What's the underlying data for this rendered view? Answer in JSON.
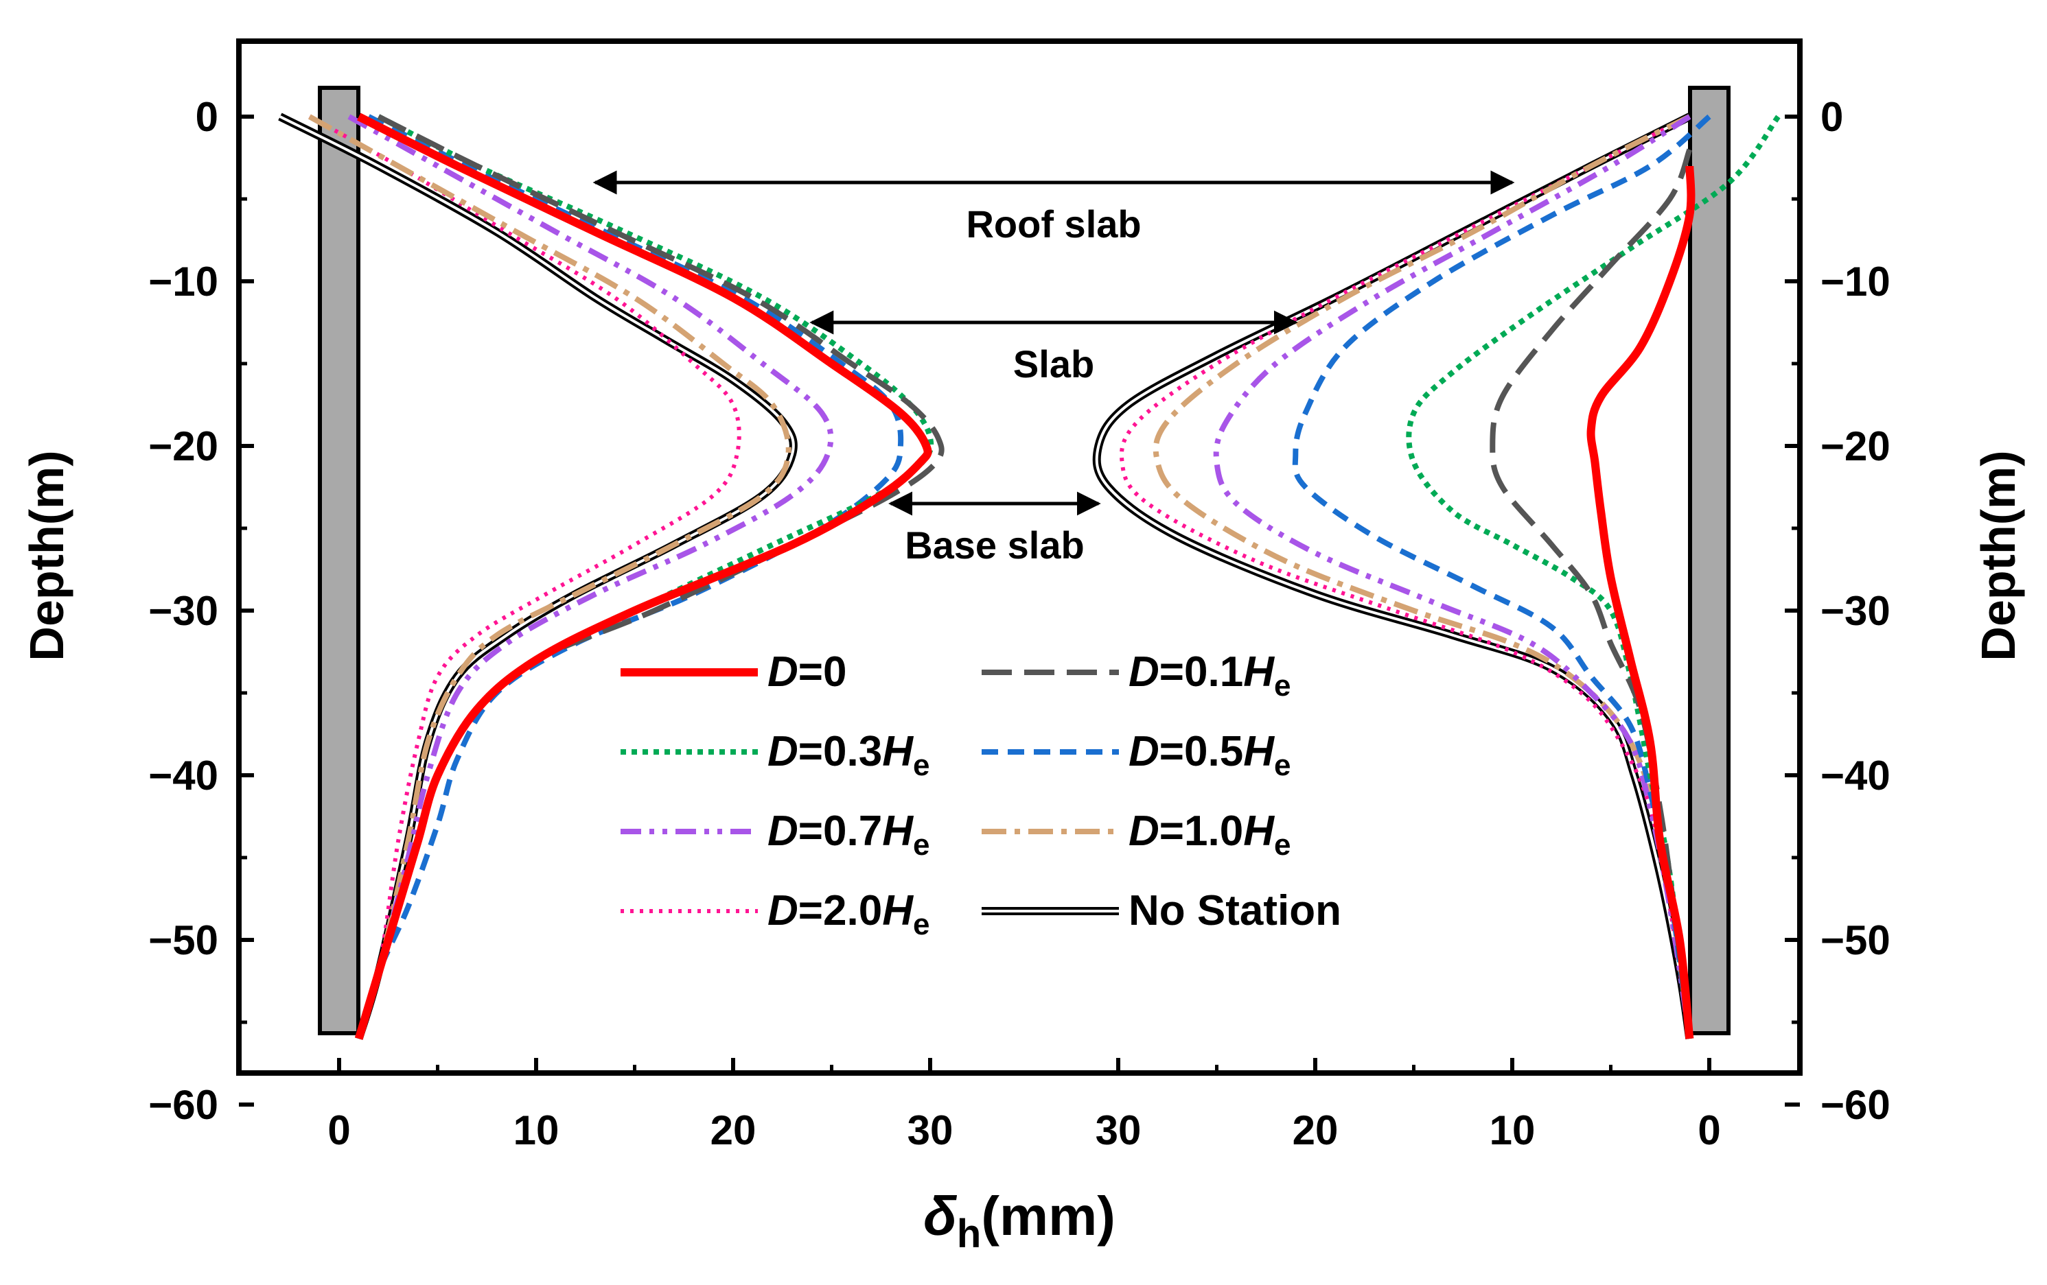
{
  "chart_data": {
    "type": "line",
    "xlabel": {
      "symbol": "δ",
      "subscript": "h",
      "unit": "(mm)"
    },
    "ylabel_left": "Depth(m)",
    "ylabel_right": "Depth(m)",
    "ylim": [
      -60,
      5
    ],
    "y_ticks": [
      0,
      -10,
      -20,
      -30,
      -40,
      -50,
      -60
    ],
    "y_tick_labels": [
      "0",
      "−10",
      "−20",
      "−30",
      "−40",
      "−50",
      "−60"
    ],
    "x_ticks_left": [
      0,
      10,
      20,
      30
    ],
    "x_ticks_right": [
      30,
      20,
      10,
      0
    ],
    "x_tick_labels_left": [
      "0",
      "10",
      "20",
      "30"
    ],
    "x_tick_labels_right": [
      "30",
      "20",
      "10",
      "0"
    ],
    "annotations": [
      {
        "label": "Roof slab",
        "depth": -4,
        "from_mm_left": 13,
        "to_mm_right": 10
      },
      {
        "label": "Slab",
        "depth": -12.5,
        "from_mm_left": 24,
        "to_mm_right": 21
      },
      {
        "label": "Base slab",
        "depth": -23.5,
        "from_mm_left": 28,
        "to_mm_right": 31
      }
    ],
    "legend": [
      {
        "prefix": "D",
        "text": "=0",
        "sub": "",
        "key": "D0"
      },
      {
        "prefix": "D",
        "text": "=0.1H",
        "sub": "e",
        "key": "D01"
      },
      {
        "prefix": "D",
        "text": "=0.3H",
        "sub": "e",
        "key": "D03"
      },
      {
        "prefix": "D",
        "text": "=0.5H",
        "sub": "e",
        "key": "D05"
      },
      {
        "prefix": "D",
        "text": "=0.7H",
        "sub": "e",
        "key": "D07"
      },
      {
        "prefix": "D",
        "text": "=1.0H",
        "sub": "e",
        "key": "D10"
      },
      {
        "prefix": "D",
        "text": "=2.0H",
        "sub": "e",
        "key": "D20"
      },
      {
        "prefix": "",
        "text": "No Station",
        "sub": "",
        "key": "NS"
      }
    ],
    "series": [
      {
        "key": "D0",
        "name": "D=0",
        "color": "#ff0000",
        "style": "solid",
        "left": [
          [
            1,
            0
          ],
          [
            6,
            -3
          ],
          [
            13,
            -7
          ],
          [
            20,
            -11
          ],
          [
            25,
            -15
          ],
          [
            28.5,
            -18
          ],
          [
            29.8,
            -20
          ],
          [
            29.5,
            -21
          ],
          [
            27.5,
            -23
          ],
          [
            23,
            -26
          ],
          [
            15,
            -30
          ],
          [
            10,
            -33
          ],
          [
            7,
            -36
          ],
          [
            5,
            -40
          ],
          [
            4,
            -44
          ],
          [
            3,
            -48
          ],
          [
            2,
            -52
          ],
          [
            1,
            -56
          ]
        ],
        "right": [
          [
            1,
            -3
          ],
          [
            1,
            -6
          ],
          [
            2,
            -10
          ],
          [
            3.5,
            -14
          ],
          [
            5.5,
            -17
          ],
          [
            6,
            -19
          ],
          [
            5.8,
            -21
          ],
          [
            5.5,
            -24
          ],
          [
            5,
            -28
          ],
          [
            4,
            -33
          ],
          [
            3,
            -38
          ],
          [
            2.5,
            -44
          ],
          [
            1.5,
            -50
          ],
          [
            1,
            -56
          ]
        ]
      },
      {
        "key": "D01",
        "name": "D=0.1He",
        "color": "#555555",
        "style": "longdash",
        "left": [
          [
            2,
            0
          ],
          [
            7,
            -3
          ],
          [
            14,
            -7
          ],
          [
            21,
            -11
          ],
          [
            26,
            -15
          ],
          [
            29,
            -17.5
          ],
          [
            30.4,
            -19.5
          ],
          [
            30.3,
            -21
          ],
          [
            28,
            -23
          ],
          [
            23,
            -26
          ],
          [
            16,
            -30
          ],
          [
            10,
            -33
          ],
          [
            7,
            -36
          ],
          [
            5,
            -40
          ],
          [
            4,
            -44
          ],
          [
            3,
            -48
          ],
          [
            2,
            -52
          ],
          [
            1,
            -56
          ]
        ],
        "right": [
          [
            1,
            -2
          ],
          [
            2,
            -5
          ],
          [
            5,
            -9
          ],
          [
            8,
            -13
          ],
          [
            10.5,
            -17
          ],
          [
            11,
            -20
          ],
          [
            10.5,
            -22.5
          ],
          [
            8,
            -26
          ],
          [
            6,
            -29
          ],
          [
            5,
            -32
          ],
          [
            3.5,
            -36
          ],
          [
            2.5,
            -42
          ],
          [
            1.8,
            -48
          ],
          [
            1,
            -56
          ]
        ]
      },
      {
        "key": "D03",
        "name": "D=0.3He",
        "color": "#00aa55",
        "style": "dotted",
        "left": [
          [
            2,
            0
          ],
          [
            7,
            -3
          ],
          [
            14.5,
            -7
          ],
          [
            21.5,
            -11
          ],
          [
            26.5,
            -15
          ],
          [
            29,
            -17.5
          ],
          [
            30,
            -19.5
          ],
          [
            29.6,
            -21
          ],
          [
            27.3,
            -23
          ],
          [
            22,
            -26
          ],
          [
            15,
            -30
          ],
          [
            10,
            -33
          ],
          [
            7,
            -36
          ],
          [
            5,
            -40
          ],
          [
            4,
            -44
          ],
          [
            3,
            -48
          ],
          [
            2,
            -52
          ],
          [
            1,
            -56
          ]
        ],
        "right": [
          [
            -3.5,
            0
          ],
          [
            -1,
            -4
          ],
          [
            4,
            -8
          ],
          [
            9,
            -12
          ],
          [
            13,
            -15.5
          ],
          [
            15,
            -18
          ],
          [
            15,
            -21
          ],
          [
            13,
            -24
          ],
          [
            10,
            -26
          ],
          [
            7,
            -28
          ],
          [
            5,
            -30
          ],
          [
            4,
            -34
          ],
          [
            3,
            -40
          ],
          [
            2,
            -46
          ],
          [
            1,
            -56
          ]
        ]
      },
      {
        "key": "D05",
        "name": "D=0.5He",
        "color": "#1a6fd0",
        "style": "dash",
        "left": [
          [
            1.5,
            0
          ],
          [
            6.5,
            -3
          ],
          [
            13.5,
            -7
          ],
          [
            20.5,
            -11
          ],
          [
            25.5,
            -15
          ],
          [
            28,
            -17.5
          ],
          [
            28.5,
            -20
          ],
          [
            27.8,
            -22
          ],
          [
            24.5,
            -25
          ],
          [
            18,
            -29
          ],
          [
            12,
            -32
          ],
          [
            8,
            -35
          ],
          [
            6,
            -39
          ],
          [
            5,
            -43
          ],
          [
            3.5,
            -48
          ],
          [
            2,
            -52
          ],
          [
            1,
            -56
          ]
        ],
        "right": [
          [
            0,
            0
          ],
          [
            3,
            -3
          ],
          [
            8,
            -6
          ],
          [
            14,
            -10
          ],
          [
            18.5,
            -14
          ],
          [
            20.5,
            -18
          ],
          [
            21,
            -20.5
          ],
          [
            20.5,
            -22.5
          ],
          [
            17,
            -25.5
          ],
          [
            12,
            -28.5
          ],
          [
            8,
            -31
          ],
          [
            6,
            -34
          ],
          [
            4,
            -37
          ],
          [
            3,
            -41
          ],
          [
            2,
            -47
          ],
          [
            1,
            -56
          ]
        ]
      },
      {
        "key": "D07",
        "name": "D=0.7He",
        "color": "#a855e8",
        "style": "dashdotdot",
        "left": [
          [
            0.5,
            0
          ],
          [
            5,
            -3
          ],
          [
            11,
            -7
          ],
          [
            17,
            -11
          ],
          [
            21.5,
            -15
          ],
          [
            24.5,
            -18
          ],
          [
            24.8,
            -20.5
          ],
          [
            23,
            -23
          ],
          [
            18.5,
            -26
          ],
          [
            13,
            -29
          ],
          [
            8.5,
            -32
          ],
          [
            6,
            -35
          ],
          [
            4.5,
            -40
          ],
          [
            3.5,
            -45
          ],
          [
            2,
            -52
          ],
          [
            1,
            -56
          ]
        ],
        "right": [
          [
            1,
            0
          ],
          [
            5,
            -3
          ],
          [
            11,
            -7
          ],
          [
            17,
            -11
          ],
          [
            22,
            -15
          ],
          [
            24.5,
            -18.5
          ],
          [
            25,
            -21
          ],
          [
            24,
            -23.5
          ],
          [
            20,
            -26.5
          ],
          [
            14,
            -29.5
          ],
          [
            9,
            -32
          ],
          [
            6,
            -35
          ],
          [
            4,
            -38
          ],
          [
            3,
            -42
          ],
          [
            2,
            -48
          ],
          [
            1,
            -56
          ]
        ]
      },
      {
        "key": "D10",
        "name": "D=1.0He",
        "color": "#d4a373",
        "style": "dashdot",
        "left": [
          [
            -1.5,
            0
          ],
          [
            3,
            -3
          ],
          [
            9,
            -7
          ],
          [
            15,
            -11
          ],
          [
            19.5,
            -15
          ],
          [
            22,
            -17.5
          ],
          [
            22.8,
            -20.5
          ],
          [
            21.5,
            -23
          ],
          [
            17,
            -26
          ],
          [
            12,
            -29
          ],
          [
            8,
            -31.5
          ],
          [
            6,
            -34
          ],
          [
            4.5,
            -38
          ],
          [
            3.5,
            -44
          ],
          [
            2,
            -52
          ],
          [
            1,
            -56
          ]
        ],
        "right": [
          [
            1,
            0
          ],
          [
            6,
            -3
          ],
          [
            12,
            -7
          ],
          [
            18.5,
            -11
          ],
          [
            24,
            -15
          ],
          [
            27.5,
            -18.5
          ],
          [
            28,
            -21
          ],
          [
            26.5,
            -23.5
          ],
          [
            21.5,
            -27
          ],
          [
            15,
            -30
          ],
          [
            10,
            -32
          ],
          [
            7,
            -34
          ],
          [
            4.5,
            -37
          ],
          [
            3,
            -41
          ],
          [
            2,
            -47
          ],
          [
            1,
            -56
          ]
        ]
      },
      {
        "key": "D20",
        "name": "D=2.0He",
        "color": "#ff1493",
        "style": "finedot",
        "left": [
          [
            -1.5,
            0
          ],
          [
            3,
            -3
          ],
          [
            8.5,
            -7
          ],
          [
            14,
            -11
          ],
          [
            18,
            -15
          ],
          [
            20,
            -17.5
          ],
          [
            20.2,
            -20.5
          ],
          [
            19,
            -23
          ],
          [
            15,
            -26
          ],
          [
            10.5,
            -29
          ],
          [
            7,
            -31.5
          ],
          [
            5,
            -34
          ],
          [
            4,
            -38
          ],
          [
            3,
            -44
          ],
          [
            2,
            -52
          ],
          [
            1,
            -56
          ]
        ],
        "right": [
          [
            1,
            0
          ],
          [
            6,
            -3
          ],
          [
            12.5,
            -7
          ],
          [
            19,
            -11
          ],
          [
            25,
            -15
          ],
          [
            29,
            -18.5
          ],
          [
            29.8,
            -21
          ],
          [
            28.5,
            -23.5
          ],
          [
            23,
            -27
          ],
          [
            16,
            -30
          ],
          [
            10,
            -32.5
          ],
          [
            6.5,
            -35
          ],
          [
            4.5,
            -38
          ],
          [
            3,
            -42
          ],
          [
            2,
            -48
          ],
          [
            1,
            -56
          ]
        ]
      },
      {
        "key": "NS",
        "name": "No Station",
        "color": "#000000",
        "style": "double",
        "left": [
          [
            -3,
            0
          ],
          [
            2,
            -3
          ],
          [
            8,
            -7
          ],
          [
            13,
            -11
          ],
          [
            16.5,
            -13.5
          ],
          [
            20,
            -16
          ],
          [
            22.5,
            -18.5
          ],
          [
            23,
            -20.5
          ],
          [
            21.5,
            -23
          ],
          [
            17,
            -26
          ],
          [
            12,
            -29
          ],
          [
            8.5,
            -31.5
          ],
          [
            6,
            -34
          ],
          [
            4.5,
            -38
          ],
          [
            3.5,
            -44
          ],
          [
            2,
            -52
          ],
          [
            1,
            -56
          ]
        ],
        "right": [
          [
            1,
            0
          ],
          [
            6,
            -3
          ],
          [
            12.5,
            -7
          ],
          [
            19,
            -11
          ],
          [
            25,
            -14.5
          ],
          [
            29.5,
            -17.5
          ],
          [
            31,
            -20
          ],
          [
            30.5,
            -22.5
          ],
          [
            27,
            -25.5
          ],
          [
            20,
            -29
          ],
          [
            13,
            -31.5
          ],
          [
            8,
            -33.5
          ],
          [
            5,
            -36.5
          ],
          [
            3.8,
            -40
          ],
          [
            2.5,
            -46
          ],
          [
            1.5,
            -52
          ],
          [
            1,
            -56
          ]
        ]
      }
    ]
  }
}
